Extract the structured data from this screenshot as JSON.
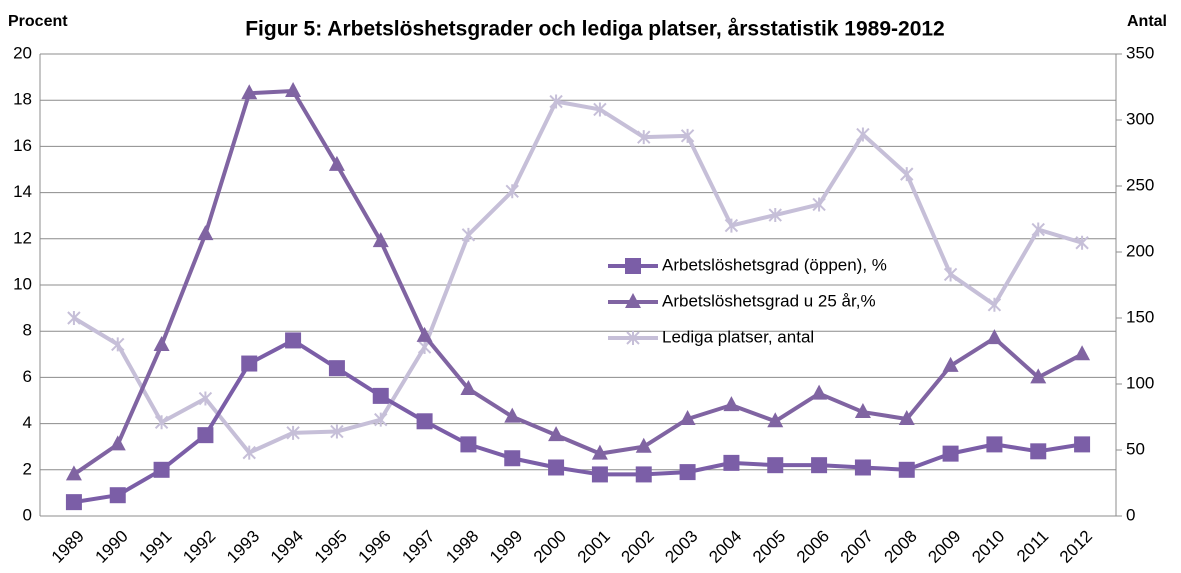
{
  "chart_data": {
    "type": "line",
    "title": "Figur 5:  Arbetslöshetsgrader och lediga platser, årsstatistik 1989-2012",
    "ylabel": "Procent",
    "y2label": "Antal",
    "categories": [
      "1989",
      "1990",
      "1991",
      "1992",
      "1993",
      "1994",
      "1995",
      "1996",
      "1997",
      "1998",
      "1999",
      "2000",
      "2001",
      "2002",
      "2003",
      "2004",
      "2005",
      "2006",
      "2007",
      "2008",
      "2009",
      "2010",
      "2011",
      "2012"
    ],
    "series": [
      {
        "name": "Arbetslöshetsgrad (öppen), %",
        "color": "#7b5ea7",
        "marker": "square",
        "axis": "y",
        "values": [
          0.6,
          0.9,
          2.0,
          3.5,
          6.6,
          7.6,
          6.4,
          5.2,
          4.1,
          3.1,
          2.5,
          2.1,
          1.8,
          1.8,
          1.9,
          2.3,
          2.2,
          2.2,
          2.1,
          2.0,
          2.7,
          3.1,
          2.8,
          3.1
        ]
      },
      {
        "name": "Arbetslöshetsgrad u 25 år,%",
        "color": "#8064a2",
        "marker": "triangle",
        "axis": "y",
        "values": [
          1.8,
          3.1,
          7.4,
          12.2,
          18.3,
          18.4,
          15.2,
          11.9,
          7.8,
          5.5,
          4.3,
          3.5,
          2.7,
          3.0,
          4.2,
          4.8,
          4.1,
          5.3,
          4.5,
          4.2,
          6.5,
          7.7,
          6.0,
          7.0
        ]
      },
      {
        "name": "Lediga platser, antal",
        "color": "#c6bfd8",
        "marker": "star",
        "axis": "y2",
        "values": [
          150,
          130,
          71,
          89,
          48,
          63,
          64,
          73,
          128,
          213,
          246,
          314,
          308,
          287,
          288,
          220,
          228,
          236,
          289,
          259,
          183,
          160,
          217,
          207
        ]
      }
    ],
    "ylim": [
      0,
      20
    ],
    "yticks": [
      0,
      2,
      4,
      6,
      8,
      10,
      12,
      14,
      16,
      18,
      20
    ],
    "y2lim": [
      0,
      350
    ],
    "y2ticks": [
      0,
      50,
      100,
      150,
      200,
      250,
      300,
      350
    ],
    "grid": true
  }
}
